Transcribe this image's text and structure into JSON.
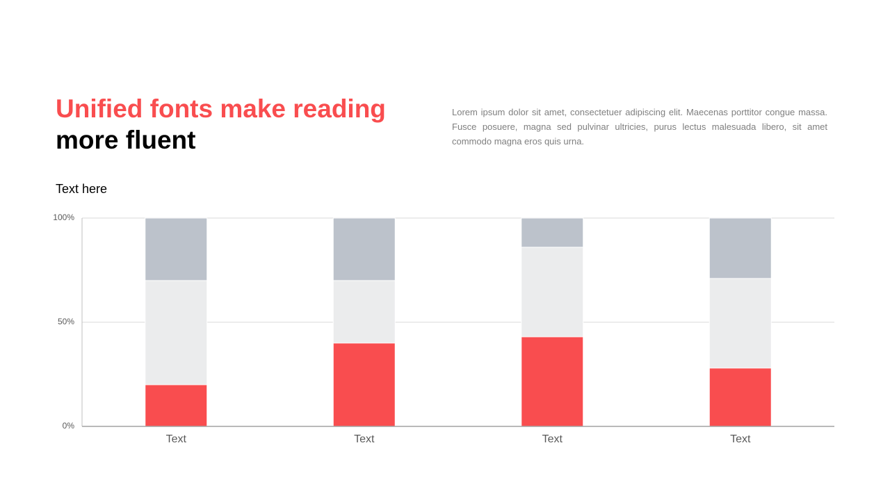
{
  "header": {
    "title_accent": "Unified fonts make reading",
    "title_rest": "more fluent",
    "body": "Lorem ipsum dolor sit amet, consectetuer adipiscing elit. Maecenas porttitor congue massa. Fusce posuere, magna sed pulvinar ultricies, purus lectus malesuada libero, sit amet commodo magna eros quis urna."
  },
  "chart_data": {
    "type": "stacked_bar",
    "title": "Text here",
    "categories": [
      "Text",
      "Text",
      "Text",
      "Text"
    ],
    "series": [
      {
        "color": "#f94d4f",
        "values": [
          20,
          40,
          43,
          28
        ]
      },
      {
        "color": "#ebeced",
        "values": [
          50,
          30,
          43,
          43
        ]
      },
      {
        "color": "#bcc2cb",
        "values": [
          30,
          30,
          14,
          29
        ]
      }
    ],
    "ylim": [
      0,
      100
    ],
    "yticks": [
      {
        "value": 0,
        "label": "0%"
      },
      {
        "value": 50,
        "label": "50%"
      },
      {
        "value": 100,
        "label": "100%"
      }
    ],
    "grid": true
  }
}
